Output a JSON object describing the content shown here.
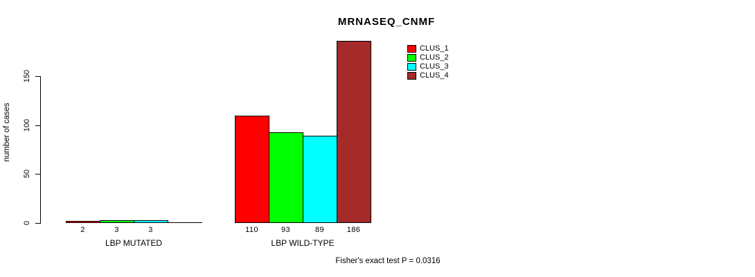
{
  "chart_data": {
    "type": "bar",
    "title": "MRNASEQ_CNMF",
    "ylabel": "number of cases",
    "annotation": "Fisher's exact test P = 0.0316",
    "yticks": [
      0,
      50,
      100,
      150
    ],
    "ylim": [
      0,
      186
    ],
    "grid": false,
    "legend_position": "top-right",
    "series": [
      {
        "name": "CLUS_1",
        "color": "#FF0000"
      },
      {
        "name": "CLUS_2",
        "color": "#00FF00"
      },
      {
        "name": "CLUS_3",
        "color": "#00FFFF"
      },
      {
        "name": "CLUS_4",
        "color": "#A52A2A"
      }
    ],
    "groups": [
      {
        "label": "LBP MUTATED",
        "values": [
          2,
          3,
          3,
          0
        ],
        "value_labels": [
          "2",
          "3",
          "3",
          ""
        ]
      },
      {
        "label": "LBP WILD-TYPE",
        "values": [
          110,
          93,
          89,
          186
        ],
        "value_labels": [
          "110",
          "93",
          "89",
          "186"
        ]
      }
    ]
  }
}
